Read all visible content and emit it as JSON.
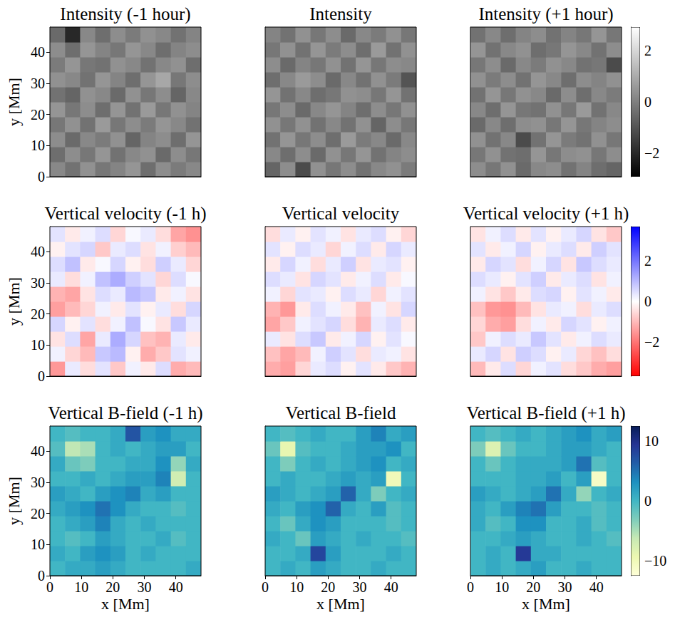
{
  "chart_data": [
    {
      "type": "heatmap",
      "title": "Intensity (-1 hour)",
      "xlim": [
        0,
        48
      ],
      "ylim": [
        0,
        48
      ],
      "yticks": [
        0,
        10,
        20,
        30,
        40
      ],
      "ylabel": "y [Mm]",
      "tick_labels": "y",
      "color": [
        "#000000",
        "#ffffff"
      ],
      "color_range": [
        -2.9,
        2.9
      ],
      "cells": [
        [
          0.2,
          -0.3,
          0.4,
          -0.2,
          0.1,
          0.5,
          -0.4,
          0.3,
          -0.1,
          0.2
        ],
        [
          -0.4,
          0.3,
          -0.2,
          0.5,
          -0.3,
          0.2,
          0.4,
          -0.5,
          0.3,
          -0.2
        ],
        [
          0.3,
          -0.5,
          0.2,
          -0.1,
          0.4,
          -0.6,
          0.1,
          0.3,
          -0.4,
          0.5
        ],
        [
          -0.2,
          0.4,
          -0.3,
          0.6,
          -0.2,
          0.3,
          -0.1,
          0.5,
          0.2,
          -0.3
        ],
        [
          0.5,
          -0.2,
          0.3,
          -0.4,
          0.5,
          -0.3,
          0.6,
          -0.2,
          0.4,
          0.1
        ],
        [
          -0.3,
          -0.6,
          0.4,
          0.2,
          -0.5,
          0.4,
          -0.2,
          0.3,
          -0.6,
          0.2
        ],
        [
          0.4,
          0.2,
          -0.3,
          0.5,
          0.1,
          -0.4,
          0.5,
          0.9,
          -0.2,
          0.3
        ],
        [
          -0.1,
          0.5,
          -0.2,
          -0.3,
          0.4,
          0.2,
          -0.3,
          0.2,
          0.4,
          -0.4
        ],
        [
          0.3,
          -0.4,
          0.5,
          0.1,
          -0.2,
          0.5,
          0.2,
          -0.4,
          0.1,
          0.3
        ],
        [
          -0.5,
          -2.0,
          0.2,
          -0.4,
          0.3,
          -0.1,
          0.4,
          0.2,
          -0.3,
          0.1
        ]
      ]
    },
    {
      "type": "heatmap",
      "title": "Intensity",
      "xlim": [
        0,
        48
      ],
      "ylim": [
        0,
        48
      ],
      "tick_labels": false,
      "color": [
        "#000000",
        "#ffffff"
      ],
      "color_range": [
        -2.9,
        2.9
      ],
      "cells": [
        [
          -0.6,
          0.3,
          -1.2,
          0.4,
          -0.2,
          0.3,
          -0.3,
          0.2,
          0.4,
          -0.1
        ],
        [
          0.2,
          -0.4,
          0.3,
          -0.5,
          0.4,
          -0.2,
          0.5,
          -0.3,
          0.1,
          0.3
        ],
        [
          -0.3,
          0.5,
          -0.2,
          0.3,
          -0.4,
          0.6,
          -0.1,
          0.2,
          -0.5,
          0.2
        ],
        [
          0.4,
          -0.2,
          0.4,
          -0.3,
          0.2,
          -0.3,
          0.4,
          -0.6,
          0.3,
          -0.2
        ],
        [
          -0.2,
          0.3,
          -0.5,
          0.2,
          0.5,
          0.1,
          -0.4,
          0.3,
          -0.2,
          0.4
        ],
        [
          0.5,
          -0.3,
          0.2,
          -0.4,
          -0.2,
          0.4,
          0.3,
          -0.2,
          0.5,
          -0.3
        ],
        [
          -0.4,
          0.2,
          0.6,
          0.3,
          -0.5,
          0.2,
          -0.3,
          0.4,
          -0.1,
          -1.0
        ],
        [
          0.3,
          -0.5,
          0.1,
          -0.2,
          0.4,
          -0.3,
          0.5,
          -0.2,
          0.3,
          0.2
        ],
        [
          -0.2,
          0.4,
          -0.3,
          0.5,
          -0.1,
          0.3,
          -0.4,
          0.6,
          -0.3,
          0.4
        ],
        [
          0.1,
          -0.3,
          0.4,
          -0.2,
          0.3,
          -0.5,
          0.2,
          -0.1,
          0.4,
          -0.2
        ]
      ]
    },
    {
      "type": "heatmap",
      "title": "Intensity (+1 hour)",
      "xlim": [
        0,
        48
      ],
      "ylim": [
        0,
        48
      ],
      "tick_labels": false,
      "color": [
        "#000000",
        "#ffffff"
      ],
      "color_range": [
        -2.9,
        2.9
      ],
      "colorbar_ticks": [
        {
          "value": -2,
          "label": "−2"
        },
        0,
        2
      ],
      "cells": [
        [
          0.3,
          -0.2,
          0.4,
          -0.5,
          0.2,
          0.3,
          -0.3,
          0.1,
          -0.4,
          -0.6
        ],
        [
          -0.2,
          0.4,
          -0.3,
          -0.4,
          0.5,
          -0.2,
          0.3,
          0.4,
          -0.2,
          0.3
        ],
        [
          0.4,
          -0.3,
          0.2,
          -1.2,
          -0.3,
          0.5,
          -0.1,
          -0.3,
          0.4,
          -0.2
        ],
        [
          -0.5,
          0.2,
          -0.4,
          0.3,
          0.4,
          -0.2,
          0.5,
          -0.2,
          0.1,
          0.3
        ],
        [
          0.2,
          -0.4,
          0.5,
          -0.2,
          -0.3,
          0.4,
          -0.2,
          0.6,
          -0.3,
          0.2
        ],
        [
          -0.3,
          0.5,
          -0.2,
          0.4,
          0.2,
          -0.5,
          0.3,
          -0.4,
          0.2,
          -0.1
        ],
        [
          0.4,
          -0.1,
          0.3,
          -0.3,
          0.5,
          0.2,
          -0.4,
          0.3,
          0.1,
          0.4
        ],
        [
          -0.2,
          0.3,
          -0.5,
          0.2,
          -0.1,
          0.4,
          0.2,
          -0.3,
          -0.2,
          -1.2
        ],
        [
          0.5,
          -0.3,
          0.2,
          0.4,
          -0.4,
          -0.2,
          0.5,
          0.2,
          -0.3,
          0.3
        ],
        [
          -0.3,
          0.2,
          -0.4,
          0.1,
          0.3,
          -0.3,
          0.1,
          -0.2,
          0.5,
          -0.2
        ]
      ]
    },
    {
      "type": "heatmap",
      "title": "Vertical velocity (-1 h)",
      "xlim": [
        0,
        48
      ],
      "ylim": [
        0,
        48
      ],
      "yticks": [
        0,
        10,
        20,
        30,
        40
      ],
      "ylabel": "y [Mm]",
      "tick_labels": "y",
      "color": [
        "#ff0000",
        "#ffffff",
        "#0000ff"
      ],
      "color_range": [
        -3.7,
        3.7
      ],
      "cells": [
        [
          -1.5,
          0.3,
          -0.5,
          0.4,
          -0.8,
          0.2,
          -0.3,
          0.5,
          -1.2,
          -1.0
        ],
        [
          0.2,
          -0.6,
          -1.0,
          0.8,
          1.0,
          -0.2,
          -1.2,
          -0.8,
          0.4,
          0.2
        ],
        [
          -0.4,
          0.5,
          -1.3,
          0.3,
          1.2,
          0.6,
          -0.9,
          -1.1,
          0.3,
          -0.3
        ],
        [
          0.6,
          -0.2,
          0.4,
          -0.5,
          0.2,
          0.9,
          0.1,
          -0.4,
          0.8,
          0.3
        ],
        [
          -1.4,
          -1.0,
          -0.6,
          0.2,
          -0.3,
          0.4,
          -0.2,
          0.3,
          -0.5,
          0.6
        ],
        [
          -1.1,
          -1.3,
          -0.4,
          0.5,
          0.3,
          1.0,
          0.8,
          -0.3,
          0.2,
          -0.4
        ],
        [
          0.3,
          -0.5,
          0.2,
          0.9,
          1.2,
          0.7,
          0.4,
          -0.6,
          0.5,
          0.1
        ],
        [
          0.5,
          0.9,
          -0.3,
          0.1,
          0.6,
          -0.2,
          -0.5,
          0.7,
          0.3,
          -0.6
        ],
        [
          -0.2,
          0.4,
          0.6,
          -0.8,
          0.3,
          0.5,
          -0.4,
          0.2,
          -0.7,
          -1.0
        ],
        [
          0.4,
          -0.3,
          0.2,
          0.5,
          -0.6,
          0.1,
          0.3,
          -0.5,
          -1.3,
          -1.6
        ]
      ]
    },
    {
      "type": "heatmap",
      "title": "Vertical velocity",
      "xlim": [
        0,
        48
      ],
      "ylim": [
        0,
        48
      ],
      "tick_labels": false,
      "color": [
        "#ff0000",
        "#ffffff",
        "#0000ff"
      ],
      "color_range": [
        -3.7,
        3.7
      ],
      "cells": [
        [
          -1.2,
          -1.4,
          -0.6,
          0.3,
          0.5,
          -0.2,
          0.4,
          -0.3,
          -0.8,
          -1.1
        ],
        [
          -0.9,
          -1.3,
          -1.0,
          0.2,
          0.7,
          0.4,
          -0.5,
          0.3,
          0.2,
          -0.4
        ],
        [
          0.3,
          -0.4,
          0.5,
          0.8,
          -0.3,
          0.2,
          0.6,
          -0.2,
          0.4,
          0.1
        ],
        [
          -1.3,
          -0.8,
          0.2,
          0.4,
          0.6,
          -0.5,
          -1.1,
          0.3,
          0.5,
          -0.3
        ],
        [
          -1.1,
          -1.5,
          -0.3,
          0.5,
          0.2,
          -0.3,
          -0.9,
          0.2,
          -0.4,
          0.6
        ],
        [
          0.2,
          -0.6,
          0.4,
          0.3,
          -0.2,
          0.5,
          0.3,
          -0.6,
          0.2,
          0.4
        ],
        [
          0.5,
          0.3,
          -0.4,
          0.6,
          0.4,
          -0.3,
          0.2,
          0.5,
          -0.3,
          0.1
        ],
        [
          -0.3,
          0.6,
          0.2,
          -0.5,
          0.3,
          0.7,
          -0.4,
          0.3,
          0.4,
          -0.2
        ],
        [
          0.4,
          -0.2,
          0.5,
          0.3,
          -0.6,
          0.2,
          0.5,
          -0.3,
          0.6,
          0.3
        ],
        [
          -0.5,
          0.3,
          -0.2,
          0.4,
          0.2,
          -0.4,
          0.3,
          0.5,
          -0.2,
          -0.6
        ]
      ]
    },
    {
      "type": "heatmap",
      "title": "Vertical velocity (+1 h)",
      "xlim": [
        0,
        48
      ],
      "ylim": [
        0,
        48
      ],
      "tick_labels": false,
      "color": [
        "#ff0000",
        "#ffffff",
        "#0000ff"
      ],
      "color_range": [
        -3.7,
        3.7
      ],
      "colorbar_ticks": [
        {
          "value": -2,
          "label": "−2"
        },
        0,
        2
      ],
      "cells": [
        [
          -1.0,
          -0.3,
          0.5,
          -0.6,
          0.2,
          0.4,
          -0.5,
          -0.8,
          -1.2,
          -1.4
        ],
        [
          0.3,
          0.6,
          -0.4,
          0.7,
          0.5,
          -0.2,
          0.3,
          -0.6,
          -0.9,
          -0.5
        ],
        [
          -0.8,
          0.2,
          0.5,
          0.3,
          0.8,
          0.4,
          -0.3,
          0.2,
          0.5,
          0.3
        ],
        [
          -0.6,
          -1.2,
          -1.4,
          -0.5,
          0.2,
          -0.3,
          0.6,
          0.4,
          -0.2,
          0.2
        ],
        [
          -0.9,
          -1.5,
          -1.6,
          -1.0,
          -0.4,
          0.3,
          0.2,
          -0.5,
          0.3,
          0.5
        ],
        [
          0.2,
          -0.4,
          -0.8,
          -0.3,
          0.5,
          0.6,
          -0.2,
          0.4,
          0.2,
          -0.3
        ],
        [
          0.5,
          0.3,
          -0.2,
          0.4,
          0.7,
          -0.3,
          0.3,
          0.5,
          -0.4,
          0.2
        ],
        [
          -0.3,
          0.6,
          0.4,
          -0.5,
          0.2,
          0.6,
          -0.4,
          0.8,
          0.5,
          0.3
        ],
        [
          0.4,
          -0.3,
          0.2,
          0.6,
          -0.2,
          0.3,
          0.5,
          -0.3,
          0.7,
          0.4
        ],
        [
          -0.4,
          0.2,
          0.5,
          -0.3,
          0.4,
          -0.2,
          0.3,
          0.6,
          -0.4,
          -0.8
        ]
      ]
    },
    {
      "type": "heatmap",
      "title": "Vertical B-field (-1 h)",
      "xlim": [
        0,
        48
      ],
      "ylim": [
        0,
        48
      ],
      "xticks": [
        0,
        10,
        20,
        30,
        40
      ],
      "yticks": [
        0,
        10,
        20,
        30,
        40
      ],
      "xlabel": "x [Mm]",
      "ylabel": "y [Mm]",
      "tick_labels": true,
      "color": [
        "#ffffd9",
        "#edf8b1",
        "#c7e9b4",
        "#7fcdbb",
        "#41b6c4",
        "#1d91c0",
        "#225ea8",
        "#253494",
        "#081d58"
      ],
      "color_range": [
        -12.5,
        12.5
      ],
      "cells": [
        [
          0,
          1,
          1,
          2,
          1,
          0,
          0,
          0,
          0,
          1
        ],
        [
          1,
          0,
          2,
          3,
          2,
          0,
          1,
          0,
          0,
          0
        ],
        [
          0,
          -1,
          0,
          2,
          1,
          0,
          0,
          1,
          -1,
          0
        ],
        [
          0,
          1,
          2,
          4,
          1,
          0,
          1,
          0,
          0,
          0
        ],
        [
          1,
          2,
          3,
          5,
          3,
          1,
          0,
          0,
          -1,
          0
        ],
        [
          2,
          1,
          0,
          2,
          3,
          4,
          1,
          2,
          0,
          0
        ],
        [
          0,
          0,
          1,
          0,
          1,
          2,
          2,
          4,
          -7,
          0
        ],
        [
          1,
          -2,
          -3,
          0,
          0,
          1,
          1,
          3,
          -4,
          1
        ],
        [
          -1,
          -6,
          -5,
          0,
          1,
          0,
          1,
          2,
          2,
          0
        ],
        [
          0,
          -1,
          0,
          0,
          1,
          7,
          2,
          3,
          1,
          1
        ]
      ]
    },
    {
      "type": "heatmap",
      "title": "Vertical B-field",
      "xlim": [
        0,
        48
      ],
      "ylim": [
        0,
        48
      ],
      "xticks": [
        0,
        10,
        20,
        30,
        40
      ],
      "xlabel": "x [Mm]",
      "tick_labels": "x",
      "color": [
        "#ffffd9",
        "#edf8b1",
        "#c7e9b4",
        "#7fcdbb",
        "#41b6c4",
        "#1d91c0",
        "#225ea8",
        "#253494",
        "#081d58"
      ],
      "color_range": [
        -12.5,
        12.5
      ],
      "cells": [
        [
          0,
          1,
          0,
          2,
          1,
          0,
          0,
          1,
          0,
          0
        ],
        [
          0,
          0,
          1,
          8,
          2,
          0,
          0,
          0,
          1,
          0
        ],
        [
          1,
          0,
          -2,
          2,
          1,
          0,
          1,
          0,
          0,
          -1
        ],
        [
          0,
          -2,
          1,
          3,
          2,
          0,
          0,
          0,
          -1,
          0
        ],
        [
          1,
          0,
          2,
          3,
          6,
          1,
          0,
          2,
          -1,
          0
        ],
        [
          2,
          1,
          0,
          1,
          2,
          6,
          1,
          -3,
          0,
          1
        ],
        [
          0,
          1,
          0,
          0,
          1,
          2,
          1,
          2,
          -10,
          0
        ],
        [
          0,
          -3,
          0,
          1,
          0,
          1,
          2,
          3,
          0,
          1
        ],
        [
          -2,
          -9,
          -1,
          0,
          0,
          1,
          2,
          2,
          3,
          0
        ],
        [
          0,
          -1,
          0,
          1,
          0,
          0,
          2,
          4,
          1,
          2
        ]
      ]
    },
    {
      "type": "heatmap",
      "title": "Vertical B-field (+1 h)",
      "xlim": [
        0,
        48
      ],
      "ylim": [
        0,
        48
      ],
      "xticks": [
        0,
        10,
        20,
        30,
        40
      ],
      "xlabel": "x [Mm]",
      "tick_labels": "x",
      "color": [
        "#ffffd9",
        "#edf8b1",
        "#c7e9b4",
        "#7fcdbb",
        "#41b6c4",
        "#1d91c0",
        "#225ea8",
        "#253494",
        "#081d58"
      ],
      "color_range": [
        -12.5,
        12.5
      ],
      "colorbar_ticks": [
        {
          "value": -10,
          "label": "−10"
        },
        0,
        10
      ],
      "cells": [
        [
          0,
          1,
          0,
          1,
          2,
          0,
          0,
          1,
          0,
          0
        ],
        [
          0,
          1,
          0,
          9,
          1,
          1,
          0,
          0,
          0,
          0
        ],
        [
          0,
          0,
          1,
          2,
          1,
          0,
          0,
          1,
          0,
          -1
        ],
        [
          1,
          -1,
          0,
          3,
          3,
          0,
          0,
          1,
          -1,
          0
        ],
        [
          1,
          0,
          2,
          4,
          5,
          2,
          0,
          0,
          -1,
          0
        ],
        [
          2,
          1,
          0,
          1,
          2,
          5,
          1,
          -4,
          0,
          1
        ],
        [
          0,
          0,
          0,
          1,
          1,
          2,
          0,
          2,
          -11,
          0
        ],
        [
          0,
          -2,
          0,
          1,
          1,
          1,
          2,
          5,
          -1,
          0
        ],
        [
          -3,
          -8,
          -2,
          0,
          0,
          1,
          2,
          2,
          1,
          0
        ],
        [
          0,
          -1,
          0,
          1,
          0,
          1,
          2,
          3,
          1,
          2
        ]
      ]
    }
  ]
}
